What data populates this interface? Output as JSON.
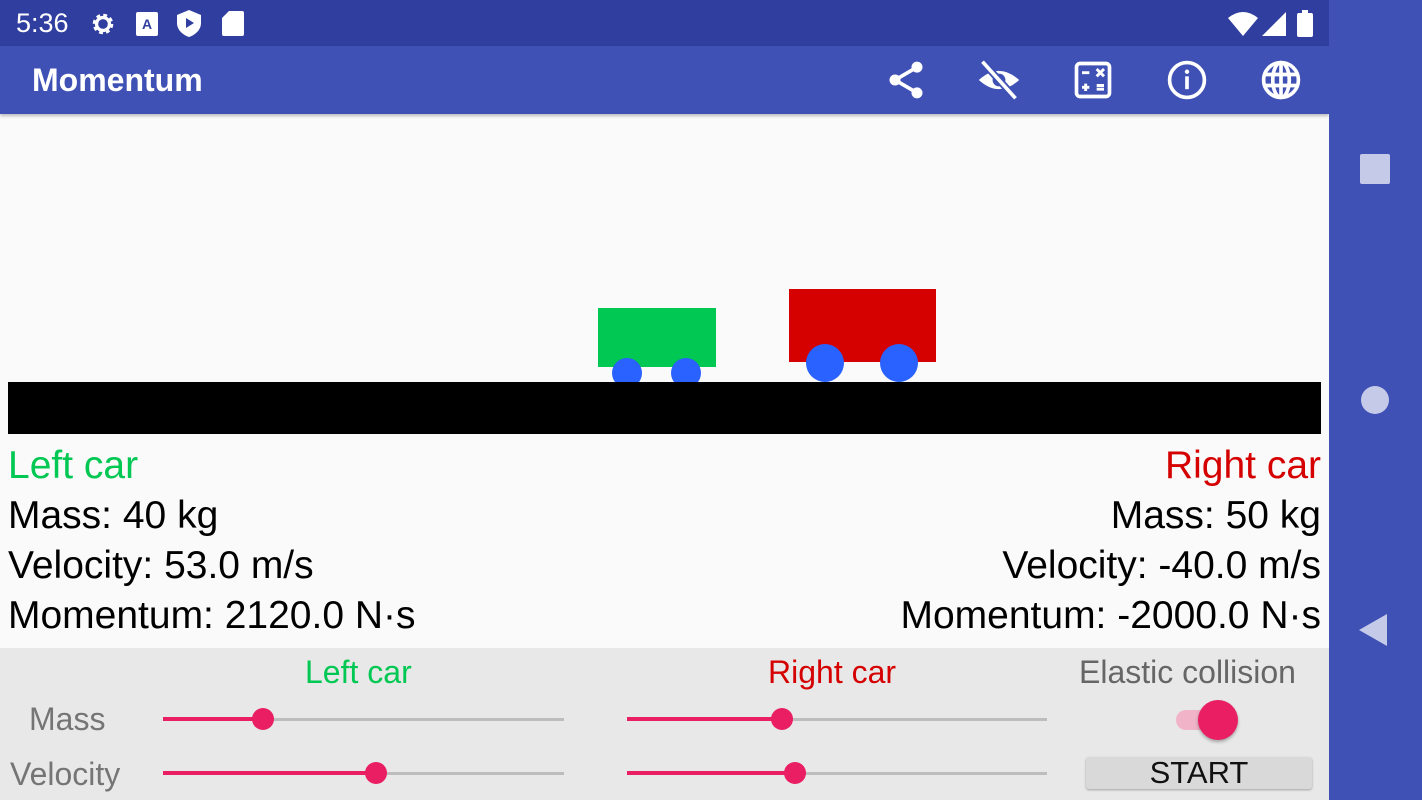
{
  "status_bar": {
    "time": "5:36",
    "icons": [
      "gear-icon",
      "font-a-icon",
      "play-shield-icon",
      "sd-card-icon",
      "wifi-icon",
      "signal-icon",
      "battery-icon"
    ]
  },
  "app_bar": {
    "title": "Momentum",
    "actions": [
      "share-icon",
      "visibility-off-icon",
      "calculator-icon",
      "info-icon",
      "globe-icon"
    ]
  },
  "colors": {
    "left_car": "#00c853",
    "right_car": "#d50000",
    "wheels": "#2962ff",
    "accent": "#e91e63",
    "primary": "#3f51b5"
  },
  "left_car": {
    "title": "Left car",
    "mass": "Mass:  40 kg",
    "velocity": "Velocity:  53.0 m/s",
    "momentum": "Momentum:  2120.0 N·s"
  },
  "right_car": {
    "title": "Right car",
    "mass": "Mass:  50 kg",
    "velocity": "Velocity:  -40.0 m/s",
    "momentum": "Momentum:  -2000.0 N·s"
  },
  "controls": {
    "left_header": "Left car",
    "right_header": "Right car",
    "mass_label": "Mass",
    "velocity_label": "Velocity",
    "left_mass_pct": 25,
    "left_velocity_pct": 53,
    "right_mass_pct": 37,
    "right_velocity_pct": 40,
    "elastic_label": "Elastic collision",
    "elastic_on": true,
    "start_label": "START"
  }
}
